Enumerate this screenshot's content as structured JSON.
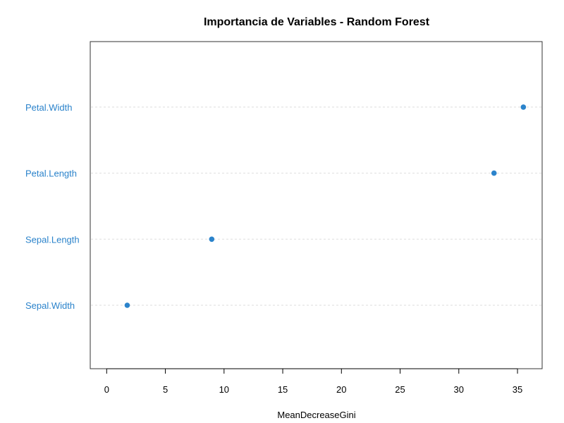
{
  "chart_data": {
    "type": "scatter",
    "title": "Importancia de Variables - Random Forest",
    "xlabel": "MeanDecreaseGini",
    "ylabel": "",
    "xlim": [
      -1.4,
      37.1
    ],
    "x_ticks": [
      "0",
      "5",
      "10",
      "15",
      "20",
      "25",
      "30",
      "35"
    ],
    "categories": [
      "Sepal.Width",
      "Sepal.Length",
      "Petal.Length",
      "Petal.Width"
    ],
    "values": [
      1.75,
      8.95,
      33.0,
      35.5
    ],
    "grid": "horizontal-dashed",
    "colors": {
      "points": "#2b83cb",
      "labels": "#2b83cb",
      "grid": "#dddddd",
      "frame": "#333333"
    }
  }
}
